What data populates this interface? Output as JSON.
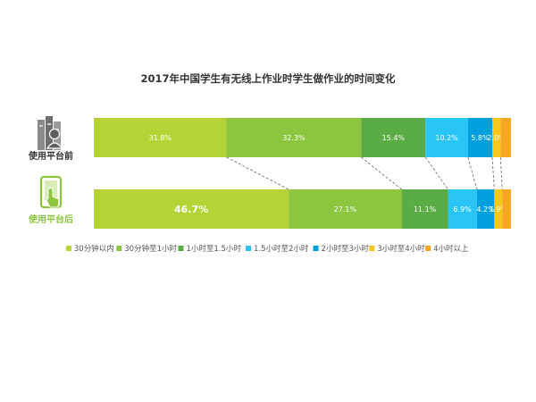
{
  "chart_data": {
    "type": "bar",
    "orientation": "horizontal",
    "stacked": "percent",
    "title": "2017年中国学生有无线上作业时学生做作业的时间变化",
    "categories": [
      "使用平台前",
      "使用平台后"
    ],
    "series": [
      {
        "name": "30分钟以内",
        "values": [
          31.8,
          46.7
        ],
        "color": "#b5d335"
      },
      {
        "name": "30分钟至1小时",
        "values": [
          32.3,
          27.1
        ],
        "color": "#8cc63f"
      },
      {
        "name": "1小时至1.5小时",
        "values": [
          15.4,
          11.1
        ],
        "color": "#5aac44"
      },
      {
        "name": "1.5小时至2小时",
        "values": [
          10.2,
          6.9
        ],
        "color": "#29c5f6"
      },
      {
        "name": "2小时至3小时",
        "values": [
          5.8,
          4.2
        ],
        "color": "#00a0e0"
      },
      {
        "name": "3小时至4小时",
        "values": [
          2.0,
          1.9
        ],
        "color": "#f7c81a"
      },
      {
        "name": "4小时以上",
        "values": [
          2.5,
          2.1
        ],
        "color": "#f5a623"
      }
    ],
    "data_labels": [
      [
        "31.8%",
        "32.3%",
        "15.4%",
        "10.2%",
        "5.8%",
        "2.0%",
        ""
      ],
      [
        "46.7%",
        "27.1%",
        "11.1%",
        "6.9%",
        "4.2%",
        "1.9%",
        ""
      ]
    ],
    "row_label_colors": [
      "#333333",
      "#8cc63f"
    ],
    "legend_position": "bottom",
    "connector_lines": true,
    "grid": false,
    "icons": [
      "books-user-icon",
      "tablet-hand-icon"
    ]
  }
}
